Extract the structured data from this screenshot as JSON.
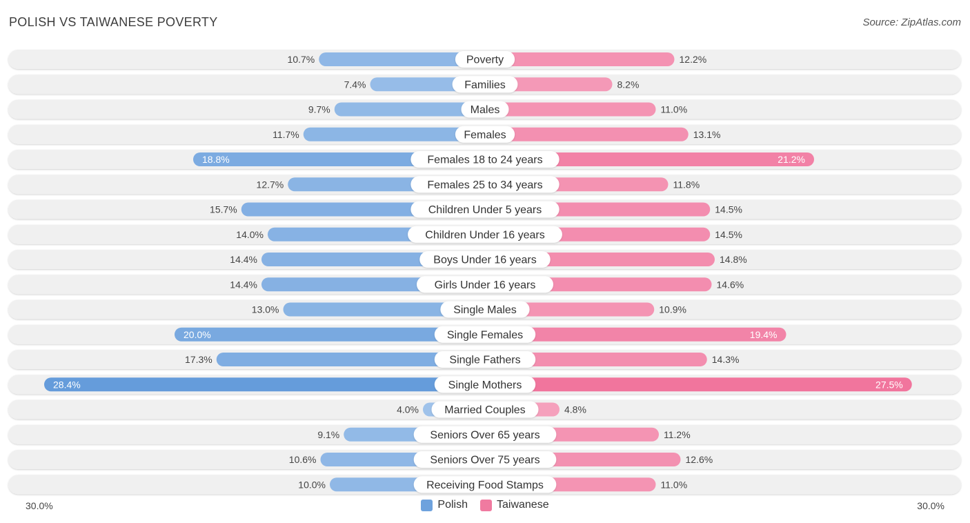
{
  "header": {
    "title": "POLISH VS TAIWANESE POVERTY",
    "source": "Source: ZipAtlas.com"
  },
  "axis": {
    "left_label": "30.0%",
    "right_label": "30.0%"
  },
  "legend": {
    "polish": "Polish",
    "taiwanese": "Taiwanese"
  },
  "colors": {
    "polish_light": "#a8c8ec",
    "polish_dark": "#6199da",
    "taiwanese_light": "#f6a9c2",
    "taiwanese_dark": "#f0709a",
    "row_bg": "#f0f0f0"
  },
  "chart_data": {
    "type": "bar",
    "orientation": "diverging-horizontal",
    "title": "POLISH VS TAIWANESE POVERTY",
    "xlim": [
      -30,
      30
    ],
    "unit": "%",
    "categories": [
      "Poverty",
      "Families",
      "Males",
      "Females",
      "Females 18 to 24 years",
      "Females 25 to 34 years",
      "Children Under 5 years",
      "Children Under 16 years",
      "Boys Under 16 years",
      "Girls Under 16 years",
      "Single Males",
      "Single Females",
      "Single Fathers",
      "Single Mothers",
      "Married Couples",
      "Seniors Over 65 years",
      "Seniors Over 75 years",
      "Receiving Food Stamps"
    ],
    "series": [
      {
        "name": "Polish",
        "values": [
          10.7,
          7.4,
          9.7,
          11.7,
          18.8,
          12.7,
          15.7,
          14.0,
          14.4,
          14.4,
          13.0,
          20.0,
          17.3,
          28.4,
          4.0,
          9.1,
          10.6,
          10.0
        ],
        "labels": [
          "10.7%",
          "7.4%",
          "9.7%",
          "11.7%",
          "18.8%",
          "12.7%",
          "15.7%",
          "14.0%",
          "14.4%",
          "14.4%",
          "13.0%",
          "20.0%",
          "17.3%",
          "28.4%",
          "4.0%",
          "9.1%",
          "10.6%",
          "10.0%"
        ]
      },
      {
        "name": "Taiwanese",
        "values": [
          12.2,
          8.2,
          11.0,
          13.1,
          21.2,
          11.8,
          14.5,
          14.5,
          14.8,
          14.6,
          10.9,
          19.4,
          14.3,
          27.5,
          4.8,
          11.2,
          12.6,
          11.0
        ],
        "labels": [
          "12.2%",
          "8.2%",
          "11.0%",
          "13.1%",
          "21.2%",
          "11.8%",
          "14.5%",
          "14.5%",
          "14.8%",
          "14.6%",
          "10.9%",
          "19.4%",
          "14.3%",
          "27.5%",
          "4.8%",
          "11.2%",
          "12.6%",
          "11.0%"
        ]
      }
    ]
  }
}
